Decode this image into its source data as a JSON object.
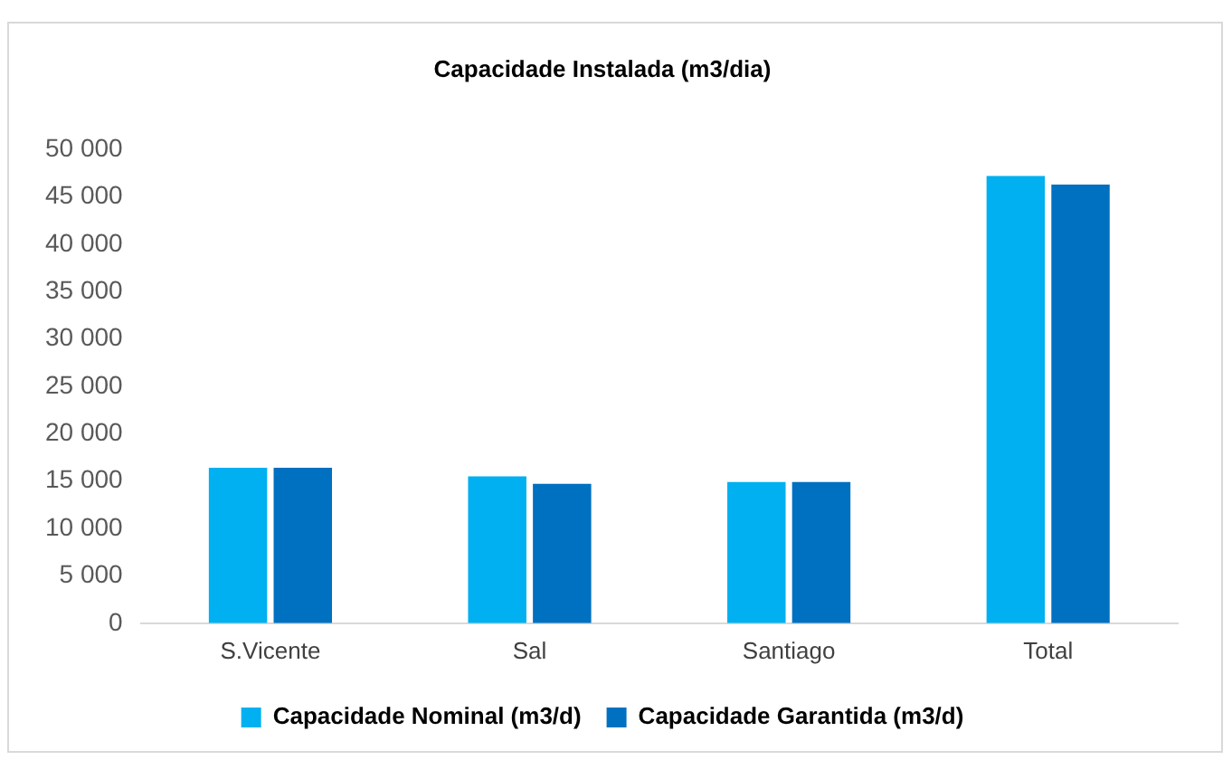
{
  "chart_data": {
    "type": "bar",
    "title": "Capacidade Instalada (m3/dia)",
    "categories": [
      "S.Vicente",
      "Sal",
      "Santiago",
      "Total"
    ],
    "series": [
      {
        "name": "Capacidade Nominal (m3/d)",
        "color": "#00b0f0",
        "values": [
          16400,
          15500,
          14900,
          47200
        ]
      },
      {
        "name": "Capacidade Garantida (m3/d)",
        "color": "#0070c0",
        "values": [
          16400,
          14700,
          14900,
          46300
        ]
      }
    ],
    "ylim": [
      0,
      50000
    ],
    "yticks": [
      {
        "value": 0,
        "label": "0"
      },
      {
        "value": 5000,
        "label": "5 000"
      },
      {
        "value": 10000,
        "label": "10 000"
      },
      {
        "value": 15000,
        "label": "15 000"
      },
      {
        "value": 20000,
        "label": "20 000"
      },
      {
        "value": 25000,
        "label": "25 000"
      },
      {
        "value": 30000,
        "label": "30 000"
      },
      {
        "value": 35000,
        "label": "35 000"
      },
      {
        "value": 40000,
        "label": "40 000"
      },
      {
        "value": 45000,
        "label": "45 000"
      },
      {
        "value": 50000,
        "label": "50 000"
      }
    ],
    "grid": false,
    "legend": "bottom"
  }
}
